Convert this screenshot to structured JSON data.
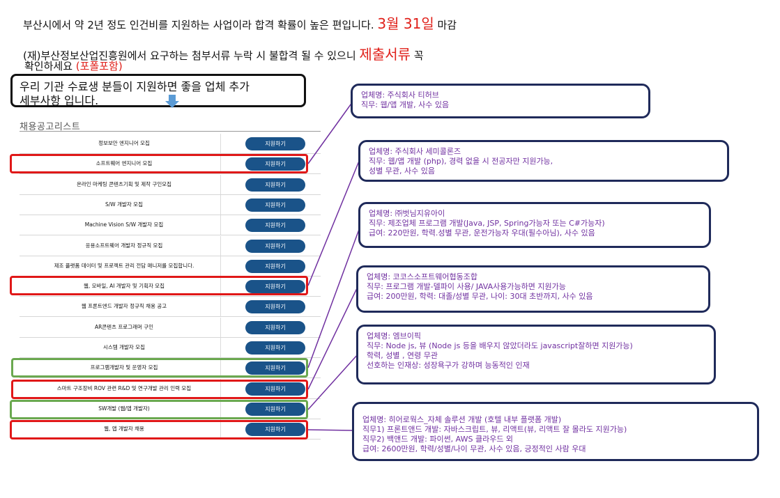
{
  "header": {
    "line1_text": "부산시에서 약 2년 정도 인건비를 지원하는 사업이라 합격 확률이 높은 편입니다. ",
    "line1_month": "3",
    "line1_month_unit": "월",
    "line1_day": " 31",
    "line1_day_unit": "일",
    "line1_tail": " 마감",
    "line2_text": "(재)부산정보산업진흥원에서  요구하는 첨부서류 누락 시 불합격 될 수 있으니 ",
    "line2_red": "제출서류",
    "line2_tail": " 꼭",
    "line3_text": "확인하세요 ",
    "line3_red": "(포폴포함)"
  },
  "notice": {
    "line1": "우리 기관 수료생 분들이 지원하면 좋을 업체 추가",
    "line2": "세부사항 입니다."
  },
  "job_list": {
    "title": "채용공고리스트",
    "button_label": "지원하기",
    "rows": [
      {
        "title": "정보보안 엔지니어 모집"
      },
      {
        "title": "소프트웨어 엔지니어 모집"
      },
      {
        "title": "온라인 마케팅 콘텐츠기획 및 제작 구인모집"
      },
      {
        "title": "S/W 개발자 모집"
      },
      {
        "title": "Machine Vision S/W 개발자 모집"
      },
      {
        "title": "응용소프트웨어 개발자 정규직 모집"
      },
      {
        "title": "제조 플랫폼 데이터 및 프로젝트 관리 전담 매니저를 모집합니다."
      },
      {
        "title": "웹, 모바일, AI 개발자 및 기획자 모집"
      },
      {
        "title": "웹 프론트엔드 개발자 정규직 채용 공고"
      },
      {
        "title": "AR콘텐츠 프로그래머 구인"
      },
      {
        "title": "시스템 개발자 모집"
      },
      {
        "title": "프로그램개발자 및 운영자 모집"
      },
      {
        "title": "스마트 구조장비 ROV 관련 R&D 및 연구개발 관리 인력 모집"
      },
      {
        "title": "SW개발 (웹/앱 개발자)"
      },
      {
        "title": "웹, 앱 개발자 채용"
      }
    ]
  },
  "companies": [
    {
      "lines": [
        "업체명: 주식회사 티허브",
        "직무: 웹/앱 개발, 사수 있음"
      ]
    },
    {
      "lines": [
        "업체명: 주식회사 세미콜론즈",
        "직무: 웹/앱 개발 (php), 경력 없을 시 전공자만 지원가능,",
        "성별 무관, 사수 있음"
      ]
    },
    {
      "lines": [
        "업체명: ㈜벗님지유아이",
        "직무: 제조업체 프로그램 개발(Java, JSP, Spring가능자 또는 C#가능자)",
        "급여: 220만원, 학력.성별 무관, 운전가능자 우대(필수아님), 사수 있음"
      ]
    },
    {
      "lines": [
        "업체명: 코코스소프트웨어협동조합",
        "직무: 프로그램 개발-델파이 사용/ JAVA사용가능하면 지원가능",
        "급여: 200만원, 학력: 대졸/성별 무관, 나이: 30대 초반까지, 사수 있음"
      ]
    },
    {
      "lines": [
        "업체명: 엠브이픽",
        "직무:  Node js, 뷰 (Node js 등을 배우지 않았더라도 javascript잘하면 지원가능)",
        "학력, 성별 , 연령 무관",
        "선호하는 인재상: 성장욕구가 강하며 능동적인 인재"
      ]
    },
    {
      "lines": [
        "업체명: 히어로웍스_자체 솔루션 개발 (호텔 내부 플랫폼 개발)",
        "직무1) 프론트앤드 개발: 자바스크립트, 뷰, 리액트(뷰, 리액트 잘 몰라도 지원가능)",
        "직무2) 백앤드 개발: 파이썬, AWS 클라우드 외",
        "급여: 2600만원, 학력/성별/나이 무관, 사수 있음, 긍정적인 사람 우대"
      ]
    }
  ],
  "colors": {
    "button_bg": "#1a5389",
    "highlight_red": "#e01818",
    "highlight_green": "#6aa84f",
    "info_border": "#1f2a5a",
    "info_text": "#7030a0",
    "connector": "#7030a0",
    "accent_red": "#e0201a"
  },
  "icons": {
    "notice_arrow": "down-arrow-icon"
  }
}
